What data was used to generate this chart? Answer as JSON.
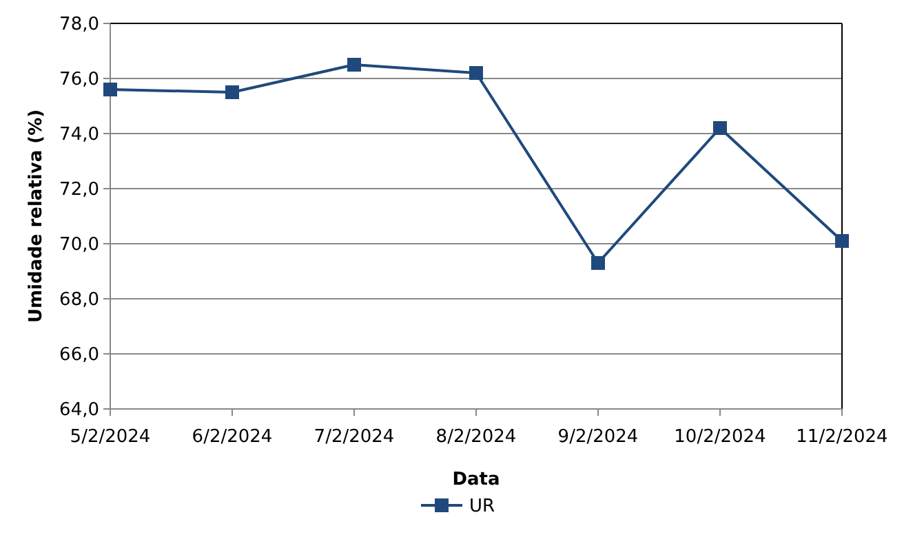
{
  "chart_data": {
    "type": "line",
    "xlabel": "Data",
    "ylabel": "Umidade relativa (%)",
    "categories": [
      "5/2/2024",
      "6/2/2024",
      "7/2/2024",
      "8/2/2024",
      "9/2/2024",
      "10/2/2024",
      "11/2/2024"
    ],
    "series": [
      {
        "name": "UR",
        "color": "#1f497d",
        "values": [
          75.6,
          75.5,
          76.5,
          76.2,
          69.3,
          74.2,
          70.1
        ]
      }
    ],
    "ylim": [
      64,
      78
    ],
    "yticks": [
      {
        "value": 64,
        "label": "64,0"
      },
      {
        "value": 66,
        "label": "66,0"
      },
      {
        "value": 68,
        "label": "68,0"
      },
      {
        "value": 70,
        "label": "70,0"
      },
      {
        "value": 72,
        "label": "72,0"
      },
      {
        "value": 74,
        "label": "74,0"
      },
      {
        "value": 76,
        "label": "76,0"
      },
      {
        "value": 78,
        "label": "78,0"
      }
    ],
    "grid": "y",
    "legend": "bottom",
    "marker": "square",
    "line_style": "solid"
  }
}
